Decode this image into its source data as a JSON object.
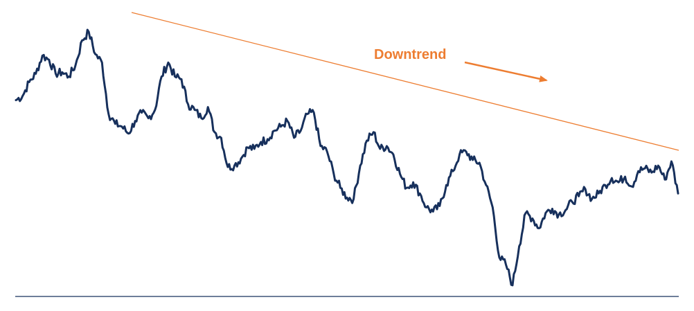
{
  "chart_data": {
    "type": "line",
    "title": "",
    "xlabel": "",
    "ylabel": "",
    "xlim": [
      0,
      100
    ],
    "ylim": [
      0,
      100
    ],
    "grid": false,
    "annotations": [
      {
        "text": "Downtrend",
        "color": "#ED7D31"
      }
    ],
    "series": [
      {
        "color": "#17305C",
        "x": [
          0,
          1,
          2,
          3,
          4,
          5,
          6,
          7,
          8,
          9,
          10,
          11,
          12,
          13,
          14,
          15,
          16,
          17,
          18,
          19,
          20,
          21,
          22,
          23,
          24,
          25,
          26,
          27,
          28,
          29,
          30,
          31,
          32,
          33,
          34,
          35,
          36,
          37,
          38,
          39,
          40,
          41,
          42,
          43,
          44,
          45,
          46,
          47,
          48,
          49,
          50,
          51,
          52,
          53,
          54,
          55,
          56,
          57,
          58,
          59,
          60,
          61,
          62,
          63,
          64,
          65,
          66,
          67,
          68,
          69,
          70,
          71,
          72,
          73,
          74,
          75,
          76,
          77,
          78,
          79,
          80,
          81,
          82,
          83,
          84,
          85,
          86,
          87,
          88,
          89,
          90,
          91,
          92,
          93,
          94,
          95,
          96,
          97,
          98,
          99,
          100
        ],
        "values": [
          70.5,
          72.0,
          77.0,
          80.0,
          86.5,
          85.0,
          80.0,
          80.5,
          79.0,
          83.0,
          92.0,
          95.0,
          87.0,
          84.0,
          65.5,
          62.0,
          61.0,
          58.5,
          63.0,
          66.0,
          64.0,
          67.0,
          79.0,
          84.0,
          79.0,
          78.0,
          69.0,
          67.0,
          64.0,
          68.0,
          59.0,
          57.0,
          46.5,
          47.0,
          49.5,
          53.5,
          53.0,
          55.5,
          56.5,
          59.5,
          61.0,
          63.0,
          57.0,
          59.5,
          65.5,
          66.0,
          54.0,
          52.0,
          44.0,
          39.0,
          35.5,
          35.0,
          47.0,
          56.0,
          59.0,
          53.0,
          54.0,
          51.0,
          44.0,
          39.0,
          41.0,
          37.0,
          32.0,
          30.5,
          32.5,
          40.0,
          45.0,
          51.0,
          52.0,
          49.0,
          48.0,
          40.0,
          32.0,
          14.0,
          11.5,
          4.0,
          18.0,
          30.0,
          28.0,
          24.5,
          30.0,
          31.5,
          29.5,
          31.0,
          34.0,
          36.0,
          38.5,
          35.0,
          37.0,
          40.0,
          42.5,
          41.0,
          43.0,
          39.5,
          45.0,
          46.0,
          44.5,
          47.0,
          42.0,
          48.5,
          37.0
        ]
      }
    ],
    "trendline": {
      "color": "#ED7D31"
    },
    "baseline": {
      "color": "#17305C"
    }
  }
}
